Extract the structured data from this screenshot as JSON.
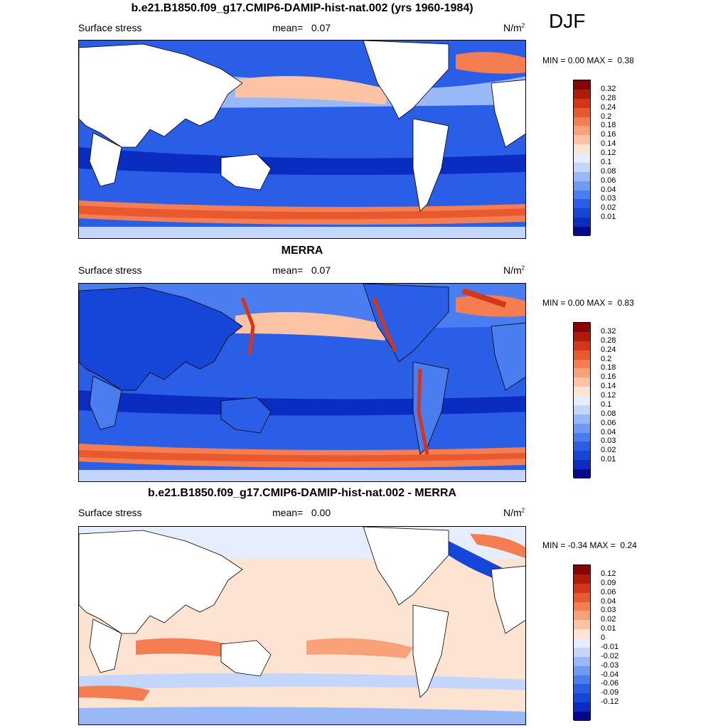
{
  "season": "DJF",
  "units_base": "N/m",
  "units_exp": "2",
  "panels": [
    {
      "title": "b.e21.B1850.f09_g17.CMIP6-DAMIP-hist-nat.002 (yrs 1960-1984)",
      "left_label": "Surface stress",
      "mean_label": "mean=",
      "mean_value": "0.07",
      "min_label": "MIN =",
      "min_value": "0.00",
      "max_label": "MAX =",
      "max_value": "0.38",
      "colorbar_ticks": [
        "0.32",
        "0.28",
        "0.24",
        "0.2",
        "0.18",
        "0.16",
        "0.14",
        "0.12",
        "0.1",
        "0.08",
        "0.06",
        "0.04",
        "0.03",
        "0.02",
        "0.01"
      ]
    },
    {
      "title": "MERRA",
      "left_label": "Surface stress",
      "mean_label": "mean=",
      "mean_value": "0.07",
      "min_label": "MIN =",
      "min_value": "0.00",
      "max_label": "MAX =",
      "max_value": "0.83",
      "colorbar_ticks": [
        "0.32",
        "0.28",
        "0.24",
        "0.2",
        "0.18",
        "0.16",
        "0.14",
        "0.12",
        "0.1",
        "0.08",
        "0.06",
        "0.04",
        "0.03",
        "0.02",
        "0.01"
      ]
    },
    {
      "title": "b.e21.B1850.f09_g17.CMIP6-DAMIP-hist-nat.002 - MERRA",
      "left_label": "Surface stress",
      "mean_label": "mean=",
      "mean_value": "0.00",
      "min_label": "MIN =",
      "min_value": "-0.34",
      "max_label": "MAX =",
      "max_value": "0.24",
      "colorbar_ticks": [
        "0.12",
        "0.09",
        "0.06",
        "0.04",
        "0.03",
        "0.02",
        "0.01",
        "0",
        "-0.01",
        "-0.02",
        "-0.03",
        "-0.04",
        "-0.06",
        "-0.09",
        "-0.12"
      ]
    }
  ],
  "colors": {
    "abs_scale": [
      "#08088a",
      "#0a2cc0",
      "#1646d8",
      "#2a5ee6",
      "#4a7ef0",
      "#6e9af4",
      "#98b8f8",
      "#c4d6fb",
      "#e6eefe",
      "#fde4d2",
      "#fcc4a4",
      "#f9a27a",
      "#f47e52",
      "#e9582e",
      "#d4361a",
      "#b01a0a",
      "#880404"
    ],
    "diff_scale": [
      "#08088a",
      "#0a2cc0",
      "#1646d8",
      "#2a5ee6",
      "#4a7ef0",
      "#6e9af4",
      "#98b8f8",
      "#c4d6fb",
      "#e6eefe",
      "#fde4d2",
      "#fcc4a4",
      "#f9a27a",
      "#f47e52",
      "#e9582e",
      "#d4361a",
      "#b01a0a",
      "#880404"
    ]
  }
}
